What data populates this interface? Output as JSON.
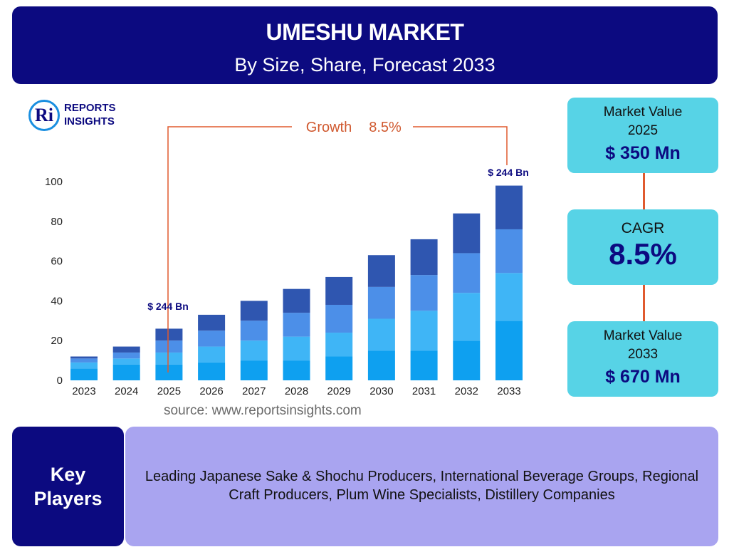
{
  "header": {
    "title": "UMESHU MARKET",
    "subtitle": "By Size, Share, Forecast 2033"
  },
  "logo": {
    "mark": "Ri",
    "line1": "REPORTS",
    "line2": "INSIGHTS"
  },
  "source": "source: www.reportsinsights.com",
  "summary": {
    "value2025_label_1": "Market Value",
    "value2025_label_2": "2025",
    "value2025": "$ 350 Mn",
    "cagr_label": "CAGR",
    "cagr": "8.5%",
    "value2033_label_1": "Market Value",
    "value2033_label_2": "2033",
    "value2033": "$ 670 Mn"
  },
  "key_players": {
    "heading_1": "Key",
    "heading_2": "Players",
    "text": "Leading Japanese Sake & Shochu Producers, International Beverage Groups, Regional Craft Producers, Plum Wine Specialists, Distillery Companies"
  },
  "colors": {
    "navy": "#0c0a80",
    "cyan_box": "#57d3e6",
    "purple_box": "#a9a4f0",
    "accent_line": "#e05a2f",
    "seg1": "#0ea0f0",
    "seg2": "#3fb5f6",
    "seg3": "#4c8fe8",
    "seg4": "#2f56b0"
  },
  "chart_data": {
    "type": "bar",
    "stacked": true,
    "categories": [
      "2023",
      "2024",
      "2025",
      "2026",
      "2027",
      "2028",
      "2029",
      "2030",
      "2031",
      "2032",
      "2033"
    ],
    "series": [
      {
        "values": [
          6,
          8,
          8,
          9,
          10,
          10,
          12,
          15,
          15,
          20,
          30
        ]
      },
      {
        "values": [
          3,
          3,
          6,
          8,
          10,
          12,
          12,
          16,
          20,
          24,
          24
        ]
      },
      {
        "values": [
          2,
          3,
          6,
          8,
          10,
          12,
          14,
          16,
          18,
          20,
          22
        ]
      },
      {
        "values": [
          1,
          3,
          6,
          8,
          10,
          12,
          14,
          16,
          18,
          20,
          22
        ]
      }
    ],
    "yticks": [
      0,
      20,
      40,
      60,
      80,
      100
    ],
    "ylim": [
      0,
      100
    ],
    "annotations": {
      "growth_label": "Growth",
      "growth_value": "8.5%",
      "start_label": "$ 244 Bn",
      "end_label": "$ 244 Bn"
    }
  }
}
